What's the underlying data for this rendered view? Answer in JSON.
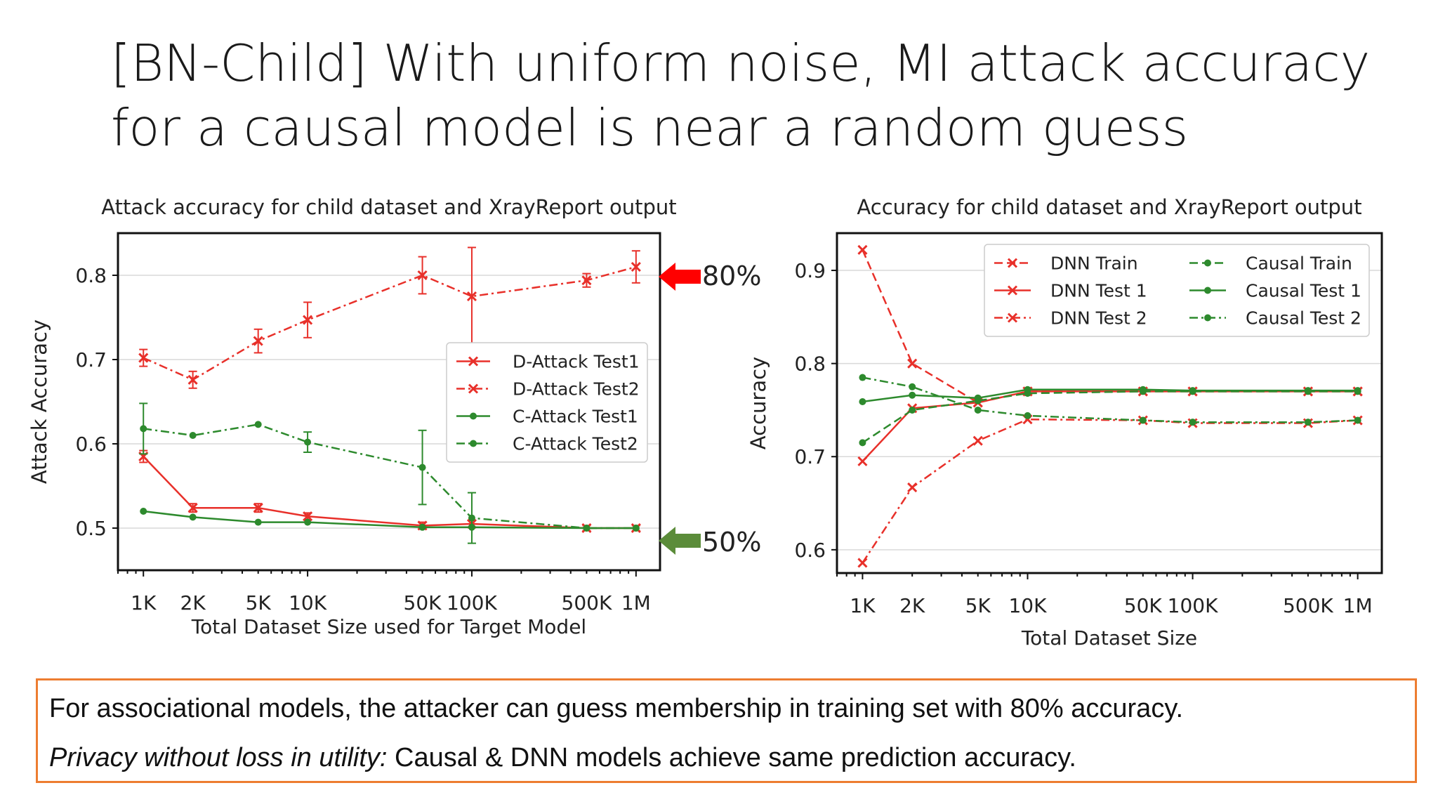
{
  "title": {
    "line1": "[BN-Child] With uniform noise, MI attack accuracy",
    "line2": "for a causal model is near a random guess"
  },
  "annotations": {
    "high_label": "80%",
    "low_label": "50%",
    "high_arrow_color": "#ff0000",
    "low_arrow_color": "#5b8c3a"
  },
  "callout": {
    "line1": "For associational models, the attacker can guess membership in training set with 80% accuracy.",
    "line2_italic": "Privacy without loss in utility:",
    "line2_rest": " Causal & DNN models achieve same prediction accuracy.",
    "border_color": "#ed7d31"
  },
  "chart_data": [
    {
      "type": "line",
      "title": "Attack accuracy for child dataset and XrayReport output",
      "xlabel": "Total Dataset Size used for Target Model",
      "ylabel": "Attack Accuracy",
      "xscale": "log",
      "xlim": [
        700,
        1400000
      ],
      "ylim": [
        0.45,
        0.85
      ],
      "x": [
        1000,
        2000,
        5000,
        10000,
        50000,
        100000,
        500000,
        1000000
      ],
      "xtick_labels": [
        "1K",
        "2K",
        "5K",
        "10K",
        "50K",
        "100K",
        "500K",
        "1M"
      ],
      "yticks": [
        0.5,
        0.6,
        0.7,
        0.8
      ],
      "ytick_labels": [
        "0.5",
        "0.6",
        "0.7",
        "0.8"
      ],
      "legend_position": "center-right",
      "grid": "horizontal",
      "series": [
        {
          "name": "D-Attack Test1",
          "color": "#e8302a",
          "dash": "solid",
          "marker": "x",
          "values": [
            0.585,
            0.524,
            0.524,
            0.514,
            0.503,
            0.505,
            0.5,
            0.5
          ],
          "errors": [
            0.007,
            0.005,
            0.005,
            0.004,
            0.004,
            0.004,
            0.003,
            0.003
          ]
        },
        {
          "name": "D-Attack Test2",
          "color": "#e8302a",
          "dash": "dashdot",
          "marker": "x",
          "values": [
            0.702,
            0.676,
            0.722,
            0.747,
            0.8,
            0.775,
            0.794,
            0.81
          ],
          "errors": [
            0.01,
            0.01,
            0.014,
            0.021,
            0.022,
            0.058,
            0.008,
            0.019
          ]
        },
        {
          "name": "C-Attack Test1",
          "color": "#2d8a2d",
          "dash": "solid",
          "marker": "o",
          "values": [
            0.52,
            0.513,
            0.507,
            0.507,
            0.501,
            0.501,
            0.5,
            0.5
          ],
          "errors": [
            0.0,
            0.0,
            0.0,
            0.0,
            0.0,
            0.0,
            0.0,
            0.0
          ]
        },
        {
          "name": "C-Attack Test2",
          "color": "#2d8a2d",
          "dash": "dashdot",
          "marker": "o",
          "values": [
            0.618,
            0.61,
            0.623,
            0.602,
            0.572,
            0.512,
            0.5,
            0.5
          ],
          "errors": [
            0.03,
            0.0,
            0.0,
            0.012,
            0.044,
            0.03,
            0.0,
            0.0
          ]
        }
      ]
    },
    {
      "type": "line",
      "title": "Accuracy for child dataset and XrayReport output",
      "xlabel": "Total Dataset Size",
      "ylabel": "Accuracy",
      "xscale": "log",
      "xlim": [
        700,
        1400000
      ],
      "ylim": [
        0.575,
        0.94
      ],
      "x": [
        1000,
        2000,
        5000,
        10000,
        50000,
        100000,
        500000,
        1000000
      ],
      "xtick_labels": [
        "1K",
        "2K",
        "5K",
        "10K",
        "50K",
        "100K",
        "500K",
        "1M"
      ],
      "yticks": [
        0.6,
        0.7,
        0.8,
        0.9
      ],
      "ytick_labels": [
        "0.6",
        "0.7",
        "0.8",
        "0.9"
      ],
      "legend_position": "top-right",
      "grid": "horizontal",
      "series": [
        {
          "name": "DNN Train",
          "color": "#e8302a",
          "dash": "dashed",
          "marker": "x",
          "values": [
            0.922,
            0.8,
            0.758,
            0.77,
            0.77,
            0.77,
            0.77,
            0.77
          ]
        },
        {
          "name": "DNN Test 1",
          "color": "#e8302a",
          "dash": "solid",
          "marker": "x",
          "values": [
            0.695,
            0.752,
            0.758,
            0.77,
            0.77,
            0.77,
            0.77,
            0.77
          ]
        },
        {
          "name": "DNN Test 2",
          "color": "#e8302a",
          "dash": "dashdot",
          "marker": "x",
          "values": [
            0.586,
            0.667,
            0.717,
            0.74,
            0.739,
            0.736,
            0.736,
            0.739
          ]
        },
        {
          "name": "Causal Train",
          "color": "#2d8a2d",
          "dash": "dashed",
          "marker": "o",
          "values": [
            0.715,
            0.75,
            0.76,
            0.768,
            0.77,
            0.77,
            0.77,
            0.77
          ]
        },
        {
          "name": "Causal Test 1",
          "color": "#2d8a2d",
          "dash": "solid",
          "marker": "o",
          "values": [
            0.759,
            0.766,
            0.763,
            0.772,
            0.772,
            0.771,
            0.771,
            0.771
          ]
        },
        {
          "name": "Causal Test 2",
          "color": "#2d8a2d",
          "dash": "dashdot",
          "marker": "o",
          "values": [
            0.785,
            0.775,
            0.75,
            0.744,
            0.739,
            0.737,
            0.737,
            0.739
          ]
        }
      ]
    }
  ]
}
